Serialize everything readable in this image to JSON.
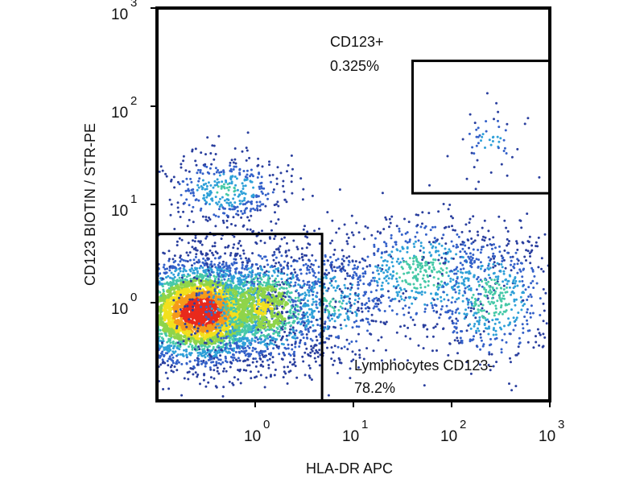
{
  "chart_data": {
    "type": "scatter",
    "title": "",
    "xlabel": "HLA-DR APC",
    "ylabel": "CD123 BIOTIN / STR-PE",
    "x_scale": "log",
    "y_scale": "log",
    "xlim": [
      0.1,
      1000
    ],
    "ylim": [
      0.1,
      1000
    ],
    "x_ticks": [
      {
        "base": "10",
        "exp": "0",
        "value": 1
      },
      {
        "base": "10",
        "exp": "1",
        "value": 10
      },
      {
        "base": "10",
        "exp": "2",
        "value": 100
      },
      {
        "base": "10",
        "exp": "3",
        "value": 1000
      }
    ],
    "y_ticks": [
      {
        "base": "10",
        "exp": "0",
        "value": 1
      },
      {
        "base": "10",
        "exp": "1",
        "value": 10
      },
      {
        "base": "10",
        "exp": "2",
        "value": 100
      },
      {
        "base": "10",
        "exp": "3",
        "value": 1000
      }
    ],
    "grid": false,
    "density_colors": [
      "#2a3f9e",
      "#3461c9",
      "#2fa0d8",
      "#47c9a8",
      "#8fd44a",
      "#f2e01e",
      "#f59b1a",
      "#e82a1c"
    ],
    "populations": [
      {
        "center_x": 0.28,
        "center_y": 0.8,
        "spread_x": 0.4,
        "spread_y": 0.28,
        "weight": 0.5,
        "peak": 1.0
      },
      {
        "center_x": 1.2,
        "center_y": 0.9,
        "spread_x": 0.38,
        "spread_y": 0.3,
        "weight": 0.18,
        "peak": 0.65
      },
      {
        "center_x": 6.0,
        "center_y": 1.0,
        "spread_x": 0.3,
        "spread_y": 0.32,
        "weight": 0.06,
        "peak": 0.4
      },
      {
        "center_x": 50,
        "center_y": 2.0,
        "spread_x": 0.45,
        "spread_y": 0.3,
        "weight": 0.1,
        "peak": 0.45
      },
      {
        "center_x": 250,
        "center_y": 1.1,
        "spread_x": 0.33,
        "spread_y": 0.35,
        "weight": 0.08,
        "peak": 0.45
      },
      {
        "center_x": 0.5,
        "center_y": 14,
        "spread_x": 0.32,
        "spread_y": 0.18,
        "weight": 0.06,
        "peak": 0.4
      },
      {
        "center_x": 250,
        "center_y": 45,
        "spread_x": 0.18,
        "spread_y": 0.16,
        "weight": 0.008,
        "peak": 0.3
      }
    ],
    "gates": [
      {
        "name": "CD123+",
        "percent": "0.325%",
        "x_range": [
          40,
          1000
        ],
        "y_range": [
          13,
          290
        ]
      },
      {
        "name": "Lymphocytes CD123-",
        "percent": "78.2%",
        "x_range": [
          0.1,
          4.8
        ],
        "y_range": [
          0.1,
          5.0
        ]
      }
    ]
  }
}
